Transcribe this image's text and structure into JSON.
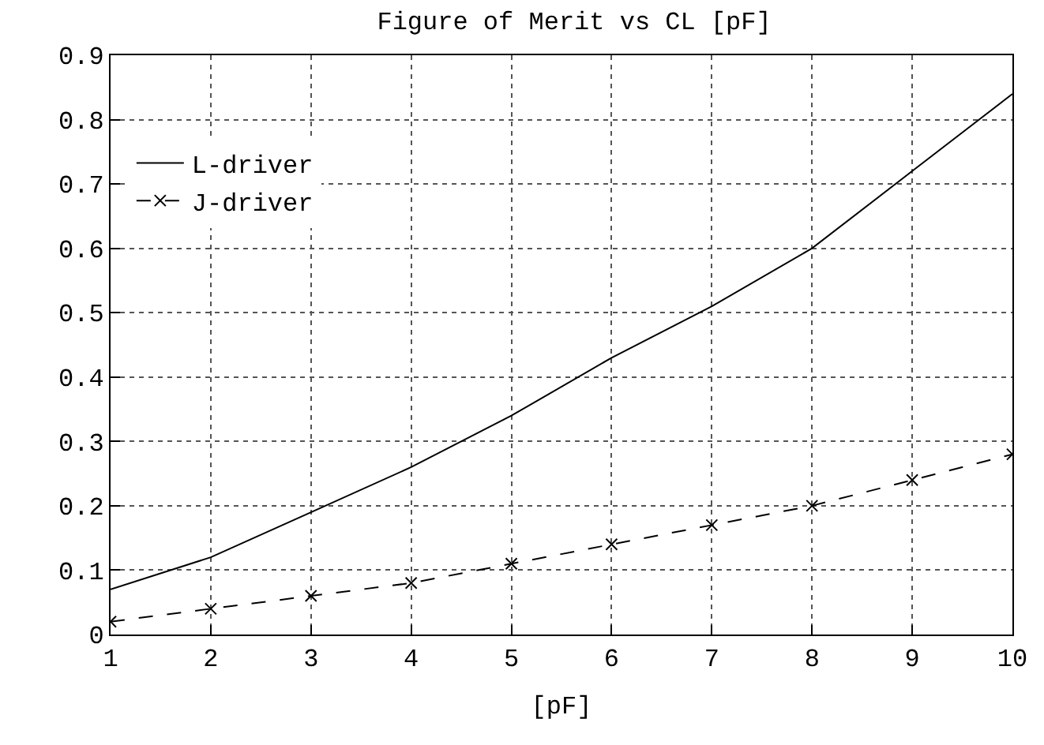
{
  "chart_data": {
    "type": "line",
    "title": "Figure of Merit vs CL [pF]",
    "xlabel": "[pF]",
    "x": [
      1,
      2,
      3,
      4,
      5,
      6,
      7,
      8,
      9,
      10
    ],
    "series": [
      {
        "name": "L-driver",
        "color": "#000000",
        "marker": "none",
        "line_style": "solid",
        "values": [
          0.07,
          0.12,
          0.19,
          0.26,
          0.34,
          0.43,
          0.51,
          0.6,
          0.72,
          0.84
        ]
      },
      {
        "name": "J-driver",
        "color": "#000000",
        "marker": "cross",
        "line_style": "dashed",
        "values": [
          0.02,
          0.04,
          0.06,
          0.08,
          0.11,
          0.14,
          0.17,
          0.2,
          0.24,
          0.28
        ]
      }
    ],
    "xlim": [
      1,
      10
    ],
    "xticks": [
      1,
      2,
      3,
      4,
      5,
      6,
      7,
      8,
      9,
      10
    ],
    "ylim": [
      0,
      0.9
    ],
    "yticks": [
      0,
      0.1,
      0.2,
      0.3,
      0.4,
      0.5,
      0.6,
      0.7,
      0.8,
      0.9
    ],
    "grid": true,
    "legend": "top left"
  }
}
